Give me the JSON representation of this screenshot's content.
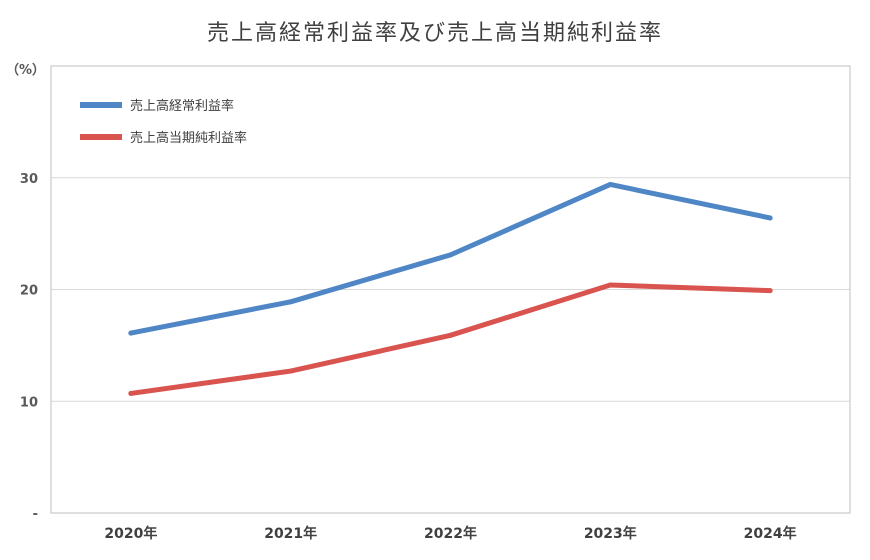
{
  "chart_data": {
    "type": "line",
    "title": "売上高経常利益率及び売上高当期純利益率",
    "unit_label": "（%）",
    "categories": [
      "2020年",
      "2021年",
      "2022年",
      "2023年",
      "2024年"
    ],
    "y_ticks": [
      {
        "value": 0,
        "label": "-"
      },
      {
        "value": 10,
        "label": "10"
      },
      {
        "value": 20,
        "label": "20"
      },
      {
        "value": 30,
        "label": "30"
      }
    ],
    "ylim": [
      0,
      40
    ],
    "grid": true,
    "legend_position": "top-left",
    "series": [
      {
        "name": "売上高経常利益率",
        "color": "#4f86c6",
        "values": [
          16.1,
          18.9,
          23.1,
          29.4,
          26.4
        ]
      },
      {
        "name": "売上高当期純利益率",
        "color": "#d9534f",
        "values": [
          10.7,
          12.7,
          15.9,
          20.4,
          19.9
        ]
      }
    ]
  }
}
